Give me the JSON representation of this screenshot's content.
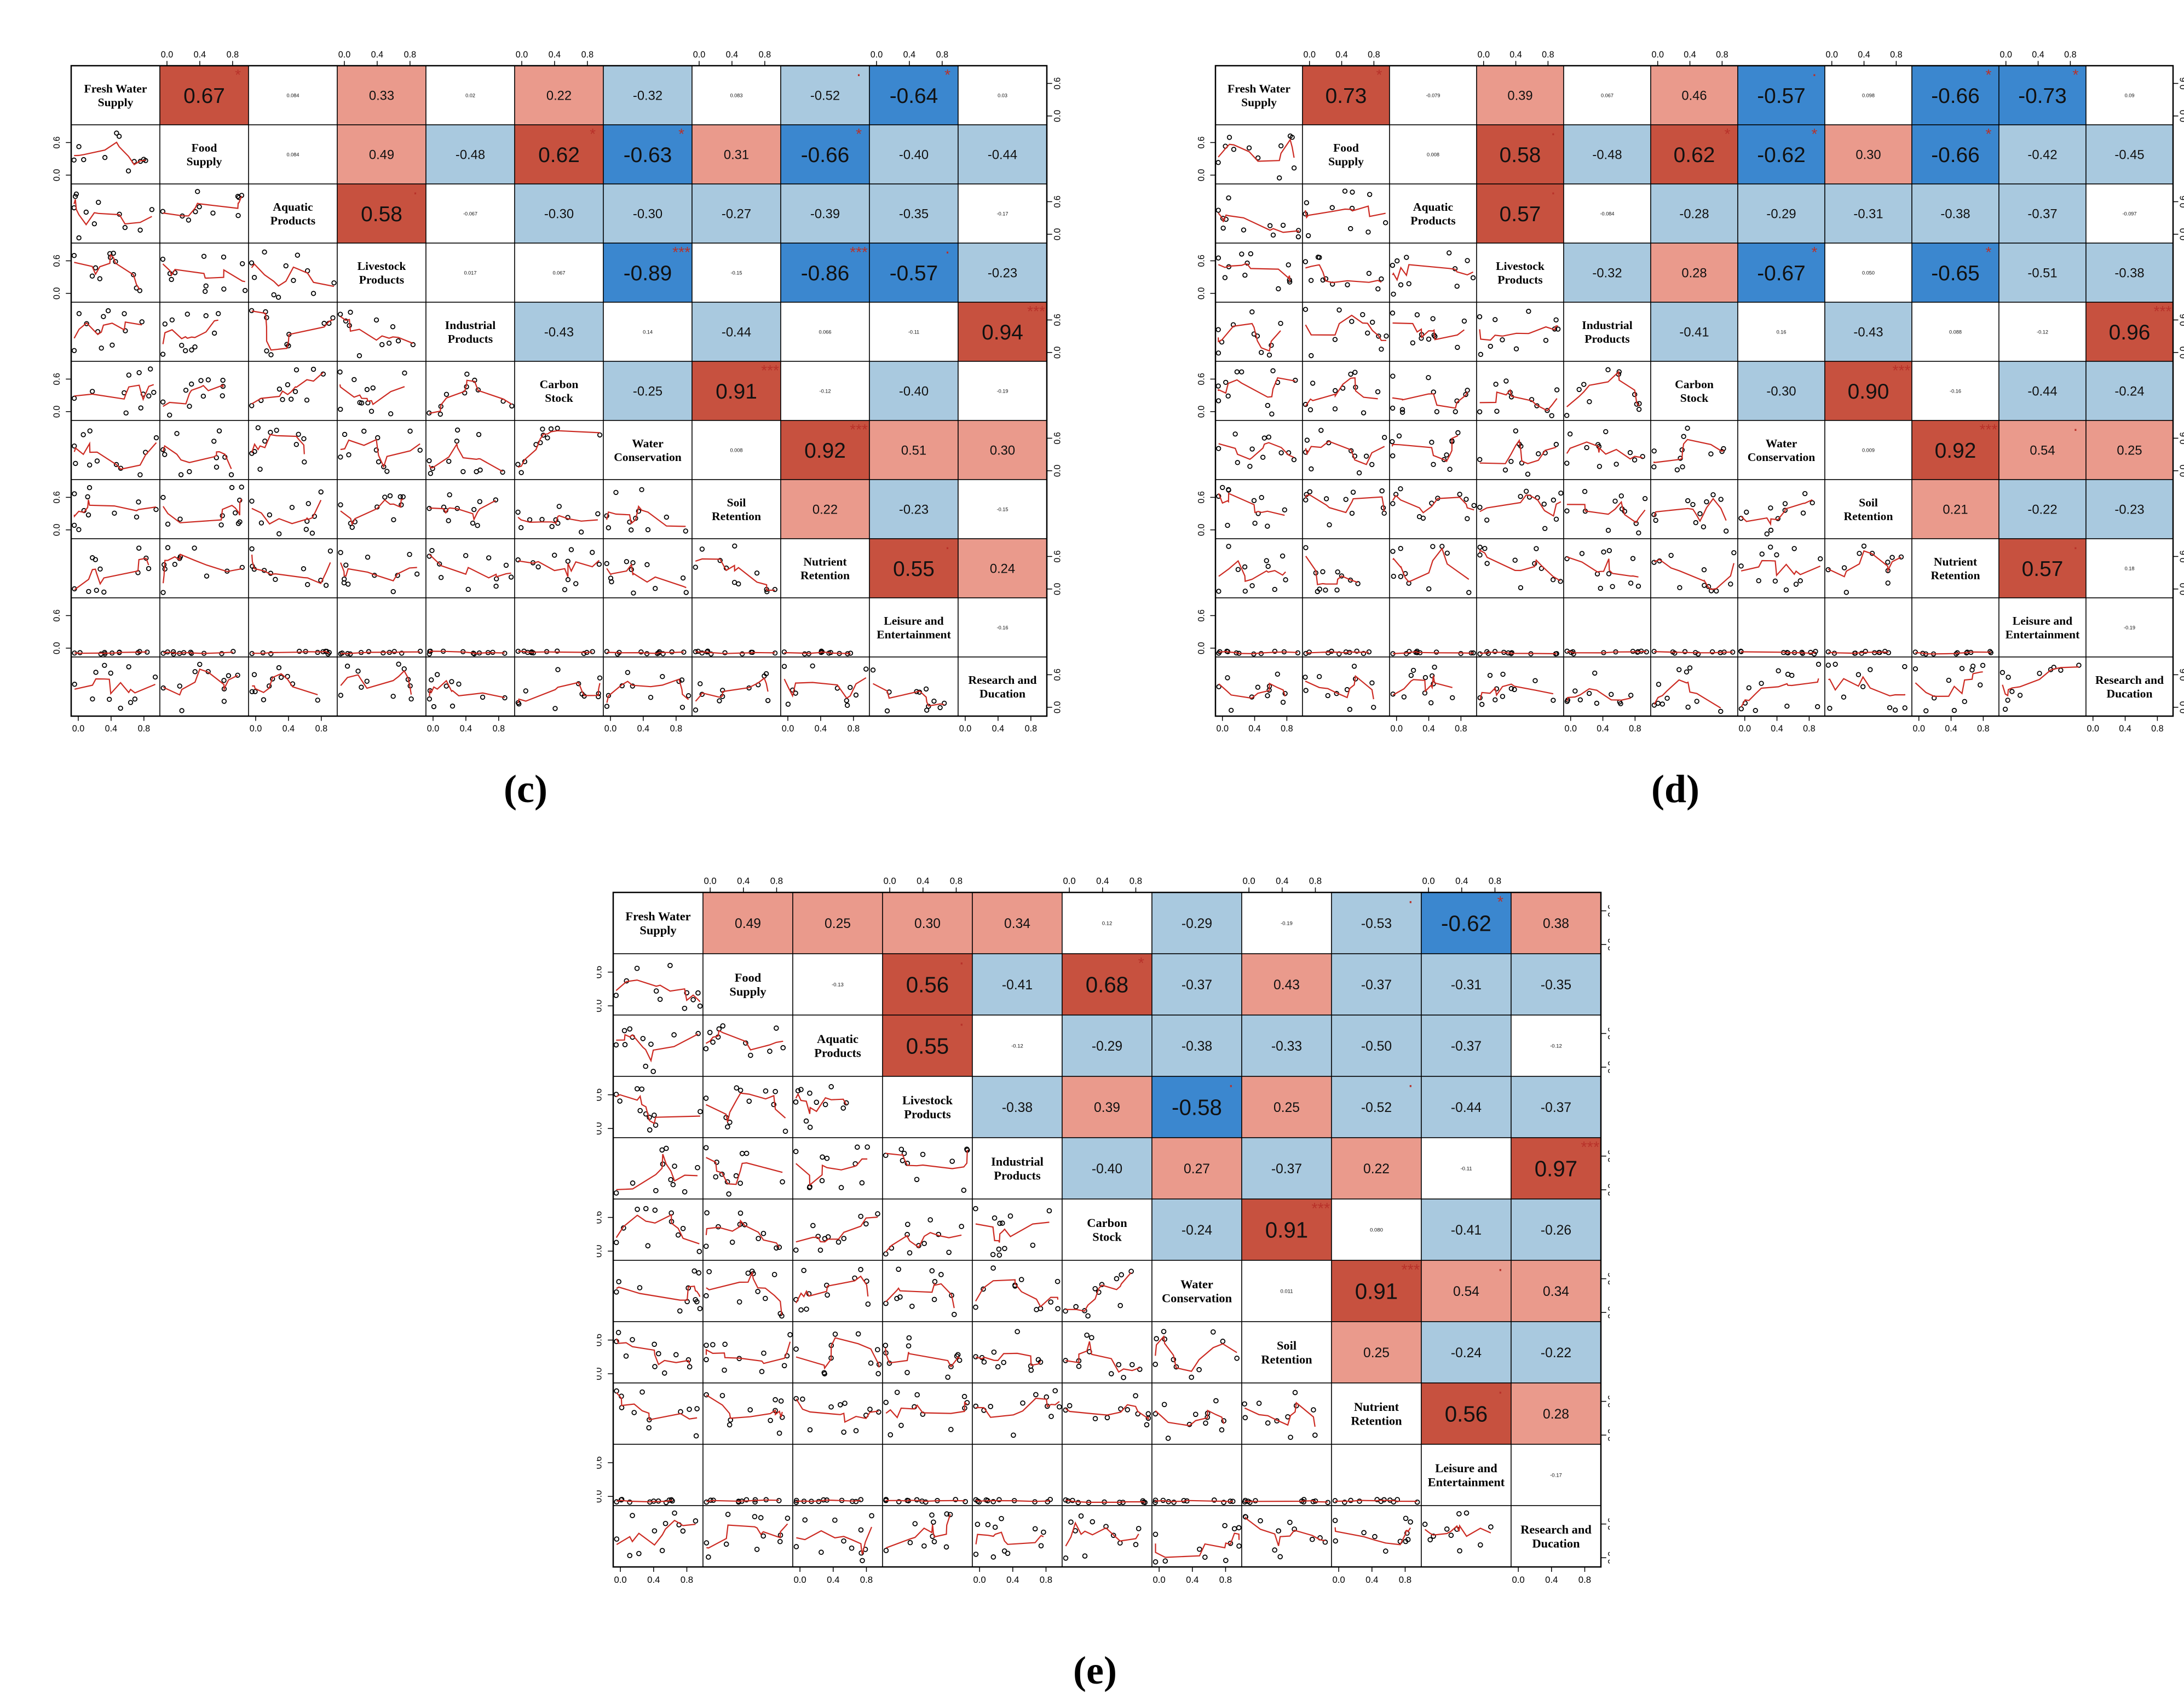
{
  "variables": [
    "Fresh Water Supply",
    "Food Supply",
    "Aquatic Products",
    "Livestock Products",
    "Industrial Products",
    "Carbon Stock",
    "Water Conservation",
    "Soil Retention",
    "Nutrient Retention",
    "Leisure and Entertainment",
    "Research and Ducation"
  ],
  "variable_lines": [
    [
      "Fresh Water",
      "Supply"
    ],
    [
      "Food",
      "Supply"
    ],
    [
      "Aquatic",
      "Products"
    ],
    [
      "Livestock",
      "Products"
    ],
    [
      "Industrial",
      "Products"
    ],
    [
      "Carbon",
      "Stock"
    ],
    [
      "Water",
      "Conservation"
    ],
    [
      "Soil",
      "Retention"
    ],
    [
      "Nutrient",
      "Retention"
    ],
    [
      "Leisure and",
      "Entertainment"
    ],
    [
      "Research and",
      "Ducation"
    ]
  ],
  "tick_labels": [
    "0.0",
    "0.4",
    "0.8"
  ],
  "side_tick_labels": [
    "0.0",
    "0.6"
  ],
  "colors": {
    "pos_strong": "#c7513f",
    "pos_mid": "#ea9a8c",
    "neg_mid": "#a9c9df",
    "neg_strong": "#3b87cf",
    "neutral": "#ffffff",
    "star": "#b8322a",
    "line": "#cc2a22",
    "grid": "#000000"
  },
  "chart_data": [
    {
      "type": "correlation_matrix",
      "panel_label": "(c)",
      "corr": [
        [
          "0.67",
          "0.084",
          "0.33",
          "0.02",
          "0.22",
          "-0.32",
          "0.083",
          "-0.52",
          "-0.64",
          "0.03"
        ],
        [
          "0.084",
          "0.49",
          "-0.48",
          "0.62",
          "-0.63",
          "0.31",
          "-0.66",
          "-0.40",
          "-0.44"
        ],
        [
          "0.58",
          "-0.067",
          "-0.30",
          "-0.30",
          "-0.27",
          "-0.39",
          "-0.35",
          "-0.17"
        ],
        [
          "0.017",
          "0.067",
          "-0.89",
          "-0.15",
          "-0.86",
          "-0.57",
          "-0.23"
        ],
        [
          "-0.43",
          "0.14",
          "-0.44",
          "0.066",
          "-0.11",
          "0.94"
        ],
        [
          "-0.25",
          "0.91",
          "-0.12",
          "-0.40",
          "-0.19"
        ],
        [
          "0.008",
          "0.92",
          "0.51",
          "0.30"
        ],
        [
          "0.22",
          "-0.23",
          "-0.15"
        ],
        [
          "0.55",
          "0.24"
        ],
        [
          "-0.16"
        ]
      ],
      "sig": [
        [
          "*",
          "",
          "",
          "",
          "",
          "",
          "",
          "·",
          "*",
          ""
        ],
        [
          "",
          "",
          "",
          "*",
          "*",
          "",
          "*",
          "",
          ""
        ],
        [
          "·",
          "",
          "",
          "",
          "",
          "",
          "",
          ""
        ],
        [
          "",
          "",
          "***",
          "",
          "***",
          "·",
          ""
        ],
        [
          "",
          "",
          "",
          "",
          "",
          "***"
        ],
        [
          "",
          "***",
          "",
          "",
          ""
        ],
        [
          "",
          "***",
          "",
          ""
        ],
        [
          "",
          "",
          ""
        ],
        [
          "·",
          ""
        ],
        [
          ""
        ]
      ]
    },
    {
      "type": "correlation_matrix",
      "panel_label": "(d)",
      "corr": [
        [
          "0.73",
          "-0.079",
          "0.39",
          "0.067",
          "0.46",
          "-0.57",
          "0.098",
          "-0.66",
          "-0.73",
          "0.09"
        ],
        [
          "0.008",
          "0.58",
          "-0.48",
          "0.62",
          "-0.62",
          "0.30",
          "-0.66",
          "-0.42",
          "-0.45"
        ],
        [
          "0.57",
          "-0.084",
          "-0.28",
          "-0.29",
          "-0.31",
          "-0.38",
          "-0.37",
          "-0.097"
        ],
        [
          "-0.32",
          "0.28",
          "-0.67",
          "0.050",
          "-0.65",
          "-0.51",
          "-0.38"
        ],
        [
          "-0.41",
          "0.16",
          "-0.43",
          "0.088",
          "-0.12",
          "0.96"
        ],
        [
          "-0.30",
          "0.90",
          "-0.16",
          "-0.44",
          "-0.24"
        ],
        [
          "0.009",
          "0.92",
          "0.54",
          "0.25"
        ],
        [
          "0.21",
          "-0.22",
          "-0.23"
        ],
        [
          "0.57",
          "0.18"
        ],
        [
          "-0.19"
        ]
      ],
      "sig": [
        [
          "*",
          "",
          "",
          "",
          "",
          "·",
          "",
          "*",
          "*",
          ""
        ],
        [
          "",
          "·",
          "",
          "*",
          "*",
          "",
          "*",
          "",
          ""
        ],
        [
          "·",
          "",
          "",
          "",
          "",
          "",
          "",
          ""
        ],
        [
          "",
          "",
          "*",
          "",
          "*",
          "",
          ""
        ],
        [
          "",
          "",
          "",
          "",
          "",
          "***"
        ],
        [
          "",
          "***",
          "",
          "",
          ""
        ],
        [
          "",
          "***",
          "·",
          ""
        ],
        [
          "",
          "",
          ""
        ],
        [
          "·",
          ""
        ],
        [
          ""
        ]
      ]
    },
    {
      "type": "correlation_matrix",
      "panel_label": "(e)",
      "corr": [
        [
          "0.49",
          "0.25",
          "0.30",
          "0.34",
          "0.12",
          "-0.29",
          "-0.19",
          "-0.53",
          "-0.62",
          "0.38"
        ],
        [
          "-0.13",
          "0.56",
          "-0.41",
          "0.68",
          "-0.37",
          "0.43",
          "-0.37",
          "-0.31",
          "-0.35"
        ],
        [
          "0.55",
          "-0.12",
          "-0.29",
          "-0.38",
          "-0.33",
          "-0.50",
          "-0.37",
          "-0.12"
        ],
        [
          "-0.38",
          "0.39",
          "-0.58",
          "0.25",
          "-0.52",
          "-0.44",
          "-0.37"
        ],
        [
          "-0.40",
          "0.27",
          "-0.37",
          "0.22",
          "-0.11",
          "0.97"
        ],
        [
          "-0.24",
          "0.91",
          "0.080",
          "-0.41",
          "-0.26"
        ],
        [
          "0.011",
          "0.91",
          "0.54",
          "0.34"
        ],
        [
          "0.25",
          "-0.24",
          "-0.22"
        ],
        [
          "0.56",
          "0.28"
        ],
        [
          "-0.17"
        ]
      ],
      "sig": [
        [
          "",
          "",
          "",
          "",
          "",
          "",
          "",
          "·",
          "*",
          ""
        ],
        [
          "",
          "·",
          "",
          "*",
          "",
          "",
          "",
          "",
          ""
        ],
        [
          "·",
          "",
          "",
          "",
          "",
          "",
          "",
          ""
        ],
        [
          "",
          "",
          "·",
          "",
          "·",
          "",
          ""
        ],
        [
          "",
          "",
          "",
          "",
          "",
          "***"
        ],
        [
          "",
          "***",
          "",
          "",
          ""
        ],
        [
          "",
          "***",
          "·",
          ""
        ],
        [
          "",
          "",
          ""
        ],
        [
          "·",
          ""
        ],
        [
          ""
        ]
      ]
    }
  ]
}
